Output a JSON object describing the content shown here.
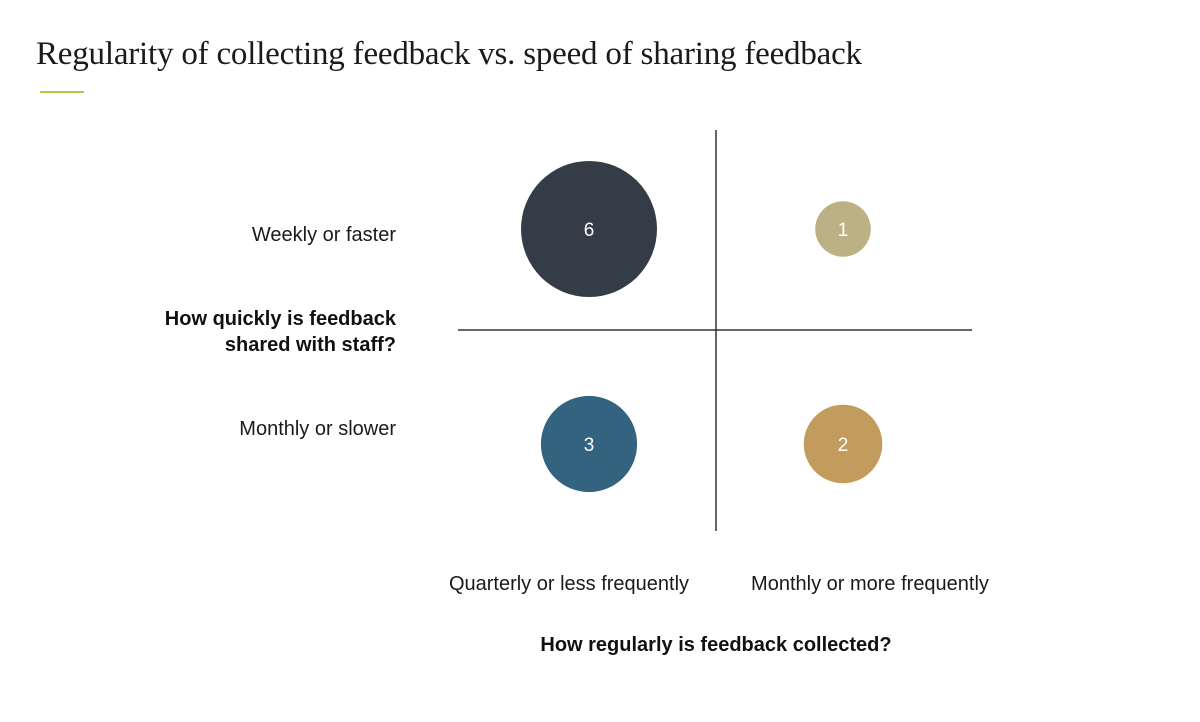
{
  "chart_data": {
    "type": "scatter",
    "title": "Regularity of collecting feedback vs. speed of sharing feedback",
    "xlabel": "How regularly is feedback collected?",
    "ylabel": "How quickly is feedback shared with staff?",
    "ylabel_lines": [
      "How quickly is feedback",
      "shared with staff?"
    ],
    "x_categories": [
      "Quarterly or less frequently",
      "Monthly or more frequently"
    ],
    "y_categories": [
      "Monthly or slower",
      "Weekly or faster"
    ],
    "points": [
      {
        "x": "Quarterly or less frequently",
        "y": "Weekly or faster",
        "value": 6,
        "label": "6",
        "color": "#343c47"
      },
      {
        "x": "Monthly or more frequently",
        "y": "Weekly or faster",
        "value": 1,
        "label": "1",
        "color": "#bbb184"
      },
      {
        "x": "Quarterly or less frequently",
        "y": "Monthly or slower",
        "value": 3,
        "label": "3",
        "color": "#33637f"
      },
      {
        "x": "Monthly or more frequently",
        "y": "Monthly or slower",
        "value": 2,
        "label": "2",
        "color": "#c19c5c"
      }
    ],
    "grid": false,
    "legend": "none",
    "accent_color": "#b7c93c",
    "axis_color": "#333333"
  }
}
